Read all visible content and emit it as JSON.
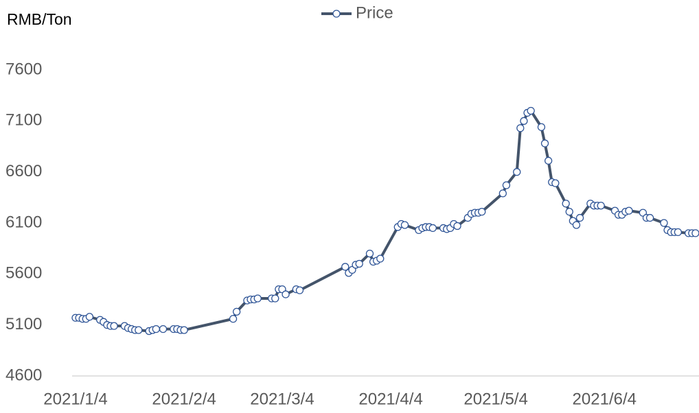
{
  "chart_data": {
    "type": "line",
    "y_axis_label": "RMB/Ton",
    "x": [
      "2021/1/4",
      "2021/1/5",
      "2021/1/6",
      "2021/1/7",
      "2021/1/8",
      "2021/1/11",
      "2021/1/12",
      "2021/1/13",
      "2021/1/14",
      "2021/1/15",
      "2021/1/18",
      "2021/1/19",
      "2021/1/20",
      "2021/1/21",
      "2021/1/22",
      "2021/1/25",
      "2021/1/26",
      "2021/1/27",
      "2021/1/29",
      "2021/2/1",
      "2021/2/2",
      "2021/2/3",
      "2021/2/4",
      "2021/2/18",
      "2021/2/19",
      "2021/2/22",
      "2021/2/23",
      "2021/2/24",
      "2021/2/25",
      "2021/3/1",
      "2021/3/2",
      "2021/3/3",
      "2021/3/4",
      "2021/3/5",
      "2021/3/8",
      "2021/3/9",
      "2021/3/22",
      "2021/3/23",
      "2021/3/24",
      "2021/3/25",
      "2021/3/26",
      "2021/3/29",
      "2021/3/30",
      "2021/3/31",
      "2021/4/1",
      "2021/4/6",
      "2021/4/7",
      "2021/4/8",
      "2021/4/12",
      "2021/4/13",
      "2021/4/14",
      "2021/4/15",
      "2021/4/16",
      "2021/4/19",
      "2021/4/20",
      "2021/4/21",
      "2021/4/22",
      "2021/4/23",
      "2021/4/26",
      "2021/4/27",
      "2021/4/28",
      "2021/4/29",
      "2021/4/30",
      "2021/5/6",
      "2021/5/7",
      "2021/5/10",
      "2021/5/11",
      "2021/5/12",
      "2021/5/13",
      "2021/5/14",
      "2021/5/17",
      "2021/5/18",
      "2021/5/19",
      "2021/5/20",
      "2021/5/21",
      "2021/5/24",
      "2021/5/25",
      "2021/5/26",
      "2021/5/27",
      "2021/5/28",
      "2021/5/31",
      "2021/6/1",
      "2021/6/2",
      "2021/6/3",
      "2021/6/7",
      "2021/6/8",
      "2021/6/9",
      "2021/6/10",
      "2021/6/11",
      "2021/6/15",
      "2021/6/16",
      "2021/6/17",
      "2021/6/21",
      "2021/6/22",
      "2021/6/23",
      "2021/6/24",
      "2021/6/25",
      "2021/6/28",
      "2021/6/29",
      "2021/6/30"
    ],
    "series": [
      {
        "name": "Price",
        "color": "#44546a",
        "marker_color": "#2f5597",
        "values": [
          5170,
          5170,
          5160,
          5160,
          5180,
          5150,
          5130,
          5100,
          5090,
          5090,
          5090,
          5070,
          5060,
          5050,
          5050,
          5040,
          5050,
          5060,
          5060,
          5060,
          5060,
          5050,
          5050,
          5160,
          5230,
          5340,
          5350,
          5350,
          5360,
          5360,
          5360,
          5450,
          5450,
          5400,
          5450,
          5440,
          5670,
          5610,
          5640,
          5690,
          5700,
          5800,
          5720,
          5730,
          5750,
          6060,
          6090,
          6080,
          6030,
          6050,
          6060,
          6060,
          6050,
          6050,
          6040,
          6050,
          6090,
          6070,
          6150,
          6190,
          6200,
          6200,
          6210,
          6390,
          6470,
          6600,
          7030,
          7100,
          7180,
          7200,
          7040,
          6880,
          6710,
          6500,
          6490,
          6290,
          6210,
          6120,
          6080,
          6150,
          6290,
          6270,
          6270,
          6270,
          6220,
          6180,
          6180,
          6210,
          6220,
          6200,
          6150,
          6150,
          6100,
          6030,
          6010,
          6010,
          6010,
          6000,
          6000,
          6000
        ]
      }
    ],
    "xlim": [
      "2021/1/4",
      "2021/7/1"
    ],
    "xticks": [
      "2021/1/4",
      "2021/2/4",
      "2021/3/4",
      "2021/4/4",
      "2021/5/4",
      "2021/6/4"
    ],
    "ylim": [
      4600,
      7600
    ],
    "yticks": [
      4600,
      5100,
      5600,
      6100,
      6600,
      7100,
      7600
    ],
    "grid": false,
    "legend": "top"
  }
}
